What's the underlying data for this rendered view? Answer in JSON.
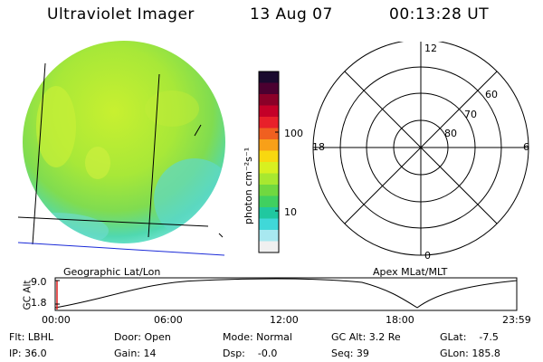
{
  "header": {
    "instrument": "Ultraviolet Imager",
    "date": "13 Aug 07",
    "time": "00:13:28 UT"
  },
  "colorbar": {
    "unit_label": "photon cm⁻²s⁻¹",
    "ticks": [
      "100",
      "10"
    ],
    "colors": [
      "#1a0a2e",
      "#4b0030",
      "#8b0028",
      "#c40028",
      "#e8202a",
      "#f06020",
      "#f8a018",
      "#f8d810",
      "#d8f020",
      "#a8e830",
      "#70d840",
      "#40d060",
      "#20c8a0",
      "#40d8d8",
      "#a8e8f0",
      "#f0f0f0"
    ]
  },
  "left_panel": {
    "caption": "Geographic Lat/Lon"
  },
  "polar": {
    "caption": "Apex MLat/MLT",
    "mlt_labels": {
      "top": "12",
      "left": "18",
      "right": "6",
      "bottom": "0"
    },
    "lat_labels": [
      "60",
      "70",
      "80"
    ]
  },
  "timeline": {
    "ylabel": "GC Alt",
    "yticks": [
      "9.0",
      "1.8"
    ],
    "xticks": [
      "00:00",
      "06:00",
      "12:00",
      "18:00",
      "23:59"
    ]
  },
  "status": {
    "flt": "Flt: LBHL",
    "ip": "IP: 36.0",
    "door": "Door: Open",
    "gain": "Gain: 14",
    "mode": "Mode: Normal",
    "dsp": "Dsp:    -0.0",
    "gcalt": "GC Alt: 3.2 Re",
    "seq": "Seq: 39",
    "glat": "GLat:    -7.5",
    "glon": "GLon: 185.8"
  }
}
